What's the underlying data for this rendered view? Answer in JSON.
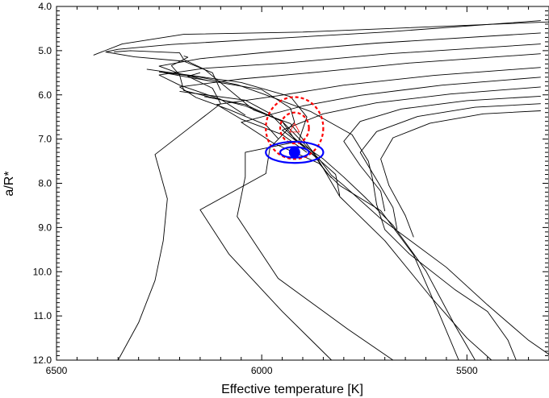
{
  "chart_data": {
    "type": "line",
    "title": "",
    "xlabel": "Effective temperature [K]",
    "ylabel": "a/R*",
    "xlim": [
      6500,
      5300
    ],
    "ylim": [
      4.0,
      12.0
    ],
    "x_inverted": true,
    "y_inverted": true,
    "xticks": [
      6500,
      6000,
      5500
    ],
    "xtick_labels": [
      "6500",
      "6000",
      "5500"
    ],
    "yticks": [
      4.0,
      5.0,
      6.0,
      7.0,
      8.0,
      9.0,
      10.0,
      11.0,
      12.0
    ],
    "ytick_labels": [
      "4.0",
      "5.0",
      "6.0",
      "7.0",
      "8.0",
      "9.0",
      "10.0",
      "11.0",
      "12.0"
    ],
    "grid": false,
    "legend": "none",
    "isochrones": [
      [
        [
          5320,
          4.32
        ],
        [
          5700,
          4.58
        ],
        [
          6020,
          4.75
        ],
        [
          6220,
          4.86
        ],
        [
          6350,
          4.97
        ],
        [
          6380,
          5.03
        ],
        [
          6310,
          5.14
        ],
        [
          6190,
          5.24
        ],
        [
          6120,
          5.5
        ],
        [
          6100,
          5.9
        ]
      ],
      [
        [
          5320,
          4.6
        ],
        [
          5720,
          4.83
        ],
        [
          5970,
          5.02
        ],
        [
          6150,
          5.18
        ],
        [
          6250,
          5.35
        ],
        [
          6200,
          5.52
        ],
        [
          6130,
          5.68
        ]
      ],
      [
        [
          5320,
          4.85
        ],
        [
          5690,
          5.07
        ],
        [
          5940,
          5.28
        ],
        [
          6140,
          5.4
        ],
        [
          6250,
          5.55
        ],
        [
          6200,
          5.78
        ],
        [
          6100,
          6.1
        ],
        [
          6040,
          6.46
        ]
      ],
      [
        [
          5320,
          5.07
        ],
        [
          5640,
          5.28
        ],
        [
          5870,
          5.49
        ],
        [
          6050,
          5.64
        ],
        [
          6200,
          5.82
        ],
        [
          6160,
          6.06
        ],
        [
          6080,
          6.33
        ],
        [
          5990,
          6.68
        ],
        [
          5960,
          6.99
        ]
      ],
      [
        [
          5320,
          5.38
        ],
        [
          5580,
          5.56
        ],
        [
          5800,
          5.78
        ],
        [
          5960,
          6.02
        ],
        [
          6110,
          6.22
        ],
        [
          6050,
          6.55
        ],
        [
          5950,
          6.9
        ],
        [
          5890,
          7.3
        ]
      ],
      [
        [
          5320,
          5.6
        ],
        [
          5560,
          5.78
        ],
        [
          5760,
          6.01
        ],
        [
          5900,
          6.25
        ],
        [
          6050,
          6.62
        ],
        [
          5970,
          7.1
        ],
        [
          5860,
          7.55
        ],
        [
          5830,
          7.88
        ]
      ],
      [
        [
          5320,
          5.82
        ],
        [
          5540,
          5.98
        ],
        [
          5720,
          6.18
        ],
        [
          5850,
          6.43
        ],
        [
          5950,
          6.8
        ],
        [
          5880,
          7.3
        ],
        [
          5820,
          7.8
        ],
        [
          5810,
          8.28
        ]
      ],
      [
        [
          5320,
          6.03
        ],
        [
          5500,
          6.13
        ],
        [
          5660,
          6.32
        ],
        [
          5760,
          6.6
        ],
        [
          5800,
          7.05
        ],
        [
          5760,
          7.6
        ],
        [
          5710,
          8.18
        ],
        [
          5700,
          8.63
        ]
      ],
      [
        [
          5320,
          6.2
        ],
        [
          5480,
          6.28
        ],
        [
          5620,
          6.49
        ],
        [
          5720,
          6.83
        ],
        [
          5760,
          7.3
        ],
        [
          5720,
          7.92
        ],
        [
          5680,
          8.55
        ],
        [
          5670,
          9.05
        ]
      ],
      [
        [
          5320,
          6.36
        ],
        [
          5460,
          6.43
        ],
        [
          5590,
          6.64
        ],
        [
          5680,
          6.97
        ],
        [
          5710,
          7.45
        ],
        [
          5690,
          8.05
        ],
        [
          5650,
          8.73
        ],
        [
          5630,
          9.22
        ]
      ]
    ],
    "tracks": [
      [
        [
          6410,
          5.1
        ],
        [
          6340,
          4.85
        ],
        [
          6190,
          4.63
        ],
        [
          5900,
          4.58
        ],
        [
          5300,
          4.35
        ]
      ],
      [
        [
          6190,
          5.12
        ],
        [
          6180,
          5.15
        ],
        [
          6220,
          5.34
        ],
        [
          6200,
          5.55
        ],
        [
          6190,
          5.9
        ],
        [
          6040,
          6.25
        ],
        [
          5950,
          6.6
        ],
        [
          5860,
          7.45
        ],
        [
          5830,
          7.82
        ],
        [
          5800,
          8.05
        ],
        [
          5710,
          8.8
        ],
        [
          5550,
          9.9
        ],
        [
          5450,
          10.75
        ],
        [
          5350,
          11.55
        ],
        [
          5280,
          12.0
        ]
      ],
      [
        [
          6360,
          5.03
        ],
        [
          6320,
          5.0
        ],
        [
          6200,
          5.05
        ],
        [
          6190,
          5.2
        ],
        [
          6140,
          5.42
        ],
        [
          6020,
          6.34
        ],
        [
          5930,
          6.65
        ],
        [
          5870,
          7.35
        ],
        [
          5840,
          7.82
        ],
        [
          5810,
          8.3
        ],
        [
          5700,
          9.3
        ],
        [
          5590,
          10.55
        ],
        [
          5500,
          11.5
        ],
        [
          5440,
          12.0
        ]
      ],
      [
        [
          6250,
          5.48
        ],
        [
          6180,
          5.6
        ],
        [
          6000,
          5.88
        ],
        [
          5930,
          6.3
        ],
        [
          5920,
          6.62
        ],
        [
          5980,
          7.2
        ],
        [
          5990,
          7.78
        ],
        [
          6150,
          8.6
        ],
        [
          6080,
          9.6
        ],
        [
          5950,
          10.9
        ],
        [
          5830,
          12.0
        ]
      ],
      [
        [
          6280,
          5.42
        ],
        [
          6050,
          5.72
        ],
        [
          5930,
          6.04
        ],
        [
          5890,
          6.5
        ],
        [
          5910,
          7.05
        ],
        [
          6040,
          7.3
        ],
        [
          6040,
          7.85
        ],
        [
          6060,
          8.75
        ],
        [
          5960,
          10.15
        ],
        [
          5790,
          11.3
        ],
        [
          5680,
          12.0
        ]
      ],
      [
        [
          6200,
          5.92
        ],
        [
          6040,
          6.12
        ],
        [
          5980,
          6.42
        ],
        [
          5930,
          6.9
        ],
        [
          5870,
          7.4
        ],
        [
          5840,
          7.78
        ],
        [
          5810,
          8.05
        ],
        [
          5710,
          8.62
        ],
        [
          5630,
          9.62
        ],
        [
          5570,
          10.9
        ],
        [
          5520,
          12.0
        ]
      ],
      [
        [
          6140,
          6.04
        ],
        [
          6040,
          6.22
        ],
        [
          5950,
          6.6
        ],
        [
          5920,
          7.0
        ],
        [
          5850,
          7.45
        ],
        [
          5800,
          7.86
        ],
        [
          5750,
          8.3
        ],
        [
          5680,
          8.95
        ],
        [
          5600,
          9.98
        ],
        [
          5530,
          11.2
        ],
        [
          5480,
          12.0
        ]
      ],
      [
        [
          6150,
          5.5
        ],
        [
          6180,
          5.58
        ],
        [
          6120,
          5.85
        ],
        [
          6100,
          6.2
        ],
        [
          6170,
          6.7
        ],
        [
          6260,
          7.35
        ],
        [
          6230,
          8.35
        ],
        [
          6240,
          9.3
        ],
        [
          6260,
          10.2
        ],
        [
          6300,
          11.15
        ],
        [
          6350,
          12.0
        ]
      ]
    ],
    "envelope": [
      [
        6250,
        5.48
      ],
      [
        6150,
        5.6
      ],
      [
        6060,
        5.77
      ],
      [
        5990,
        6.0
      ],
      [
        5880,
        6.38
      ],
      [
        5780,
        6.9
      ],
      [
        5740,
        7.5
      ],
      [
        5730,
        7.9
      ],
      [
        5720,
        8.48
      ],
      [
        5700,
        9.05
      ],
      [
        5640,
        9.6
      ],
      [
        5530,
        10.4
      ],
      [
        5450,
        10.9
      ],
      [
        5400,
        11.55
      ],
      [
        5380,
        12.0
      ]
    ],
    "observations": {
      "blue": {
        "teff": 5920,
        "a_rs": 7.3,
        "sigma_teff": 35,
        "sigma_a_rs": 0.12,
        "rings": [
          1,
          2
        ],
        "color": "#0000ff"
      },
      "red": {
        "teff": 5920,
        "a_rs": 6.75,
        "sigma_teff": 35,
        "sigma_a_rs": 0.35,
        "rings": [
          1,
          2
        ],
        "color": "#ff0000",
        "line_style": "dashed"
      }
    }
  }
}
